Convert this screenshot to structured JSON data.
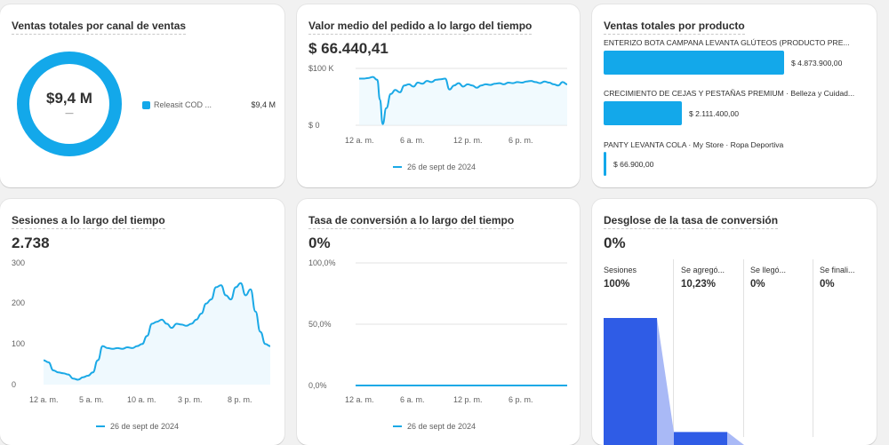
{
  "colors": {
    "accent": "#13a8ea",
    "funnel": "#2f5ce6",
    "funnel_light": "#a9b9f6"
  },
  "cards": {
    "sales_by_channel": {
      "title": "Ventas totales por canal de ventas",
      "center_value": "$9,4 M",
      "center_sub": "—",
      "legend": [
        {
          "label": "Releasit COD ...",
          "value": "$9,4 M"
        }
      ]
    },
    "avg_order": {
      "title": "Valor medio del pedido a lo largo del tiempo",
      "value": "$ 66.440,41",
      "legend": "26 de sept de 2024"
    },
    "sales_by_product": {
      "title": "Ventas totales por producto",
      "products": [
        {
          "label": "ENTERIZO BOTA CAMPANA LEVANTA GLÚTEOS (PRODUCTO PRE...",
          "value": "$ 4.873.900,00",
          "amount": 4873900
        },
        {
          "label": "CRECIMIENTO DE CEJAS Y PESTAÑAS PREMIUM · Belleza y Cuidad...",
          "value": "$ 2.111.400,00",
          "amount": 2111400
        },
        {
          "label": "PANTY LEVANTA COLA · My Store · Ropa Deportiva",
          "value": "$ 66.900,00",
          "amount": 66900
        }
      ]
    },
    "sessions": {
      "title": "Sesiones a lo largo del tiempo",
      "value": "2.738",
      "legend": "26 de sept de 2024"
    },
    "conversion_rate": {
      "title": "Tasa de conversión a lo largo del tiempo",
      "value": "0%",
      "legend": "26 de sept de 2024"
    },
    "funnel": {
      "title": "Desglose de la tasa de conversión",
      "value": "0%",
      "steps": [
        {
          "label": "Sesiones",
          "pct": "100%",
          "fraction": 1.0
        },
        {
          "label": "Se agregó...",
          "pct": "10,23%",
          "fraction": 0.1023
        },
        {
          "label": "Se llegó...",
          "pct": "0%",
          "fraction": 0
        },
        {
          "label": "Se finali...",
          "pct": "0%",
          "fraction": 0
        }
      ]
    }
  },
  "chart_data": [
    {
      "type": "line",
      "title": "Valor medio del pedido a lo largo del tiempo",
      "x_ticks": [
        "12 a. m.",
        "6 a. m.",
        "12 p. m.",
        "6 p. m."
      ],
      "y_ticks": [
        "$100 K",
        "$ 0"
      ],
      "ylim": [
        0,
        100000
      ],
      "x": [
        0,
        0.5,
        1,
        1.5,
        2,
        2.3,
        2.6,
        3,
        3.5,
        4,
        4.5,
        5,
        5.5,
        6,
        6.5,
        7,
        7.5,
        8,
        8.5,
        9,
        9.5,
        10,
        10.5,
        11,
        11.5,
        12,
        12.5,
        13,
        13.5,
        14,
        14.5,
        15,
        15.5,
        16,
        16.5,
        17,
        17.5,
        18,
        18.5,
        19,
        19.5,
        20,
        20.5,
        21,
        21.5,
        22,
        22.5,
        23
      ],
      "values": [
        82000,
        82000,
        83000,
        85000,
        80000,
        45000,
        2000,
        30000,
        55000,
        62000,
        58000,
        70000,
        72000,
        68000,
        75000,
        73000,
        78000,
        76000,
        80000,
        81000,
        82000,
        63000,
        70000,
        74000,
        68000,
        72000,
        70000,
        66000,
        70000,
        72000,
        71000,
        73000,
        74000,
        72000,
        75000,
        74000,
        76000,
        75000,
        77000,
        78000,
        76000,
        74000,
        77000,
        75000,
        72000,
        70000,
        76000,
        72000
      ],
      "series": [
        {
          "name": "26 de sept de 2024"
        }
      ]
    },
    {
      "type": "line",
      "title": "Sesiones a lo largo del tiempo",
      "x_ticks": [
        "12 a. m.",
        "5 a. m.",
        "10 a. m.",
        "3 p. m.",
        "8 p. m."
      ],
      "y_ticks": [
        300,
        200,
        100,
        0
      ],
      "ylim": [
        0,
        300
      ],
      "x": [
        0,
        0.5,
        1,
        1.5,
        2,
        2.5,
        3,
        3.5,
        4,
        4.5,
        5,
        5.5,
        6,
        6.5,
        7,
        7.5,
        8,
        8.5,
        9,
        9.5,
        10,
        10.5,
        11,
        11.5,
        12,
        12.5,
        13,
        13.5,
        14,
        14.5,
        15,
        15.5,
        16,
        16.5,
        17,
        17.5,
        18,
        18.5,
        19,
        19.5,
        20,
        20.5,
        21,
        21.5,
        22,
        22.5,
        23
      ],
      "values": [
        60,
        55,
        35,
        30,
        28,
        25,
        15,
        12,
        18,
        22,
        30,
        60,
        95,
        90,
        88,
        90,
        88,
        92,
        90,
        95,
        100,
        120,
        150,
        155,
        160,
        150,
        140,
        150,
        148,
        145,
        150,
        160,
        175,
        200,
        210,
        240,
        245,
        220,
        210,
        240,
        250,
        220,
        235,
        180,
        130,
        100,
        95
      ],
      "series": [
        {
          "name": "26 de sept de 2024"
        }
      ]
    },
    {
      "type": "line",
      "title": "Tasa de conversión a lo largo del tiempo",
      "x_ticks": [
        "12 a. m.",
        "6 a. m.",
        "12 p. m.",
        "6 p. m."
      ],
      "y_ticks": [
        "100,0%",
        "50,0%",
        "0,0%"
      ],
      "ylim": [
        0,
        100
      ],
      "x": [
        0,
        23
      ],
      "values": [
        0,
        0
      ],
      "series": [
        {
          "name": "26 de sept de 2024"
        }
      ]
    },
    {
      "type": "bar",
      "title": "Desglose de la tasa de conversión",
      "categories": [
        "Sesiones",
        "Se agregó...",
        "Se llegó...",
        "Se finali..."
      ],
      "values": [
        100,
        10.23,
        0,
        0
      ]
    }
  ]
}
